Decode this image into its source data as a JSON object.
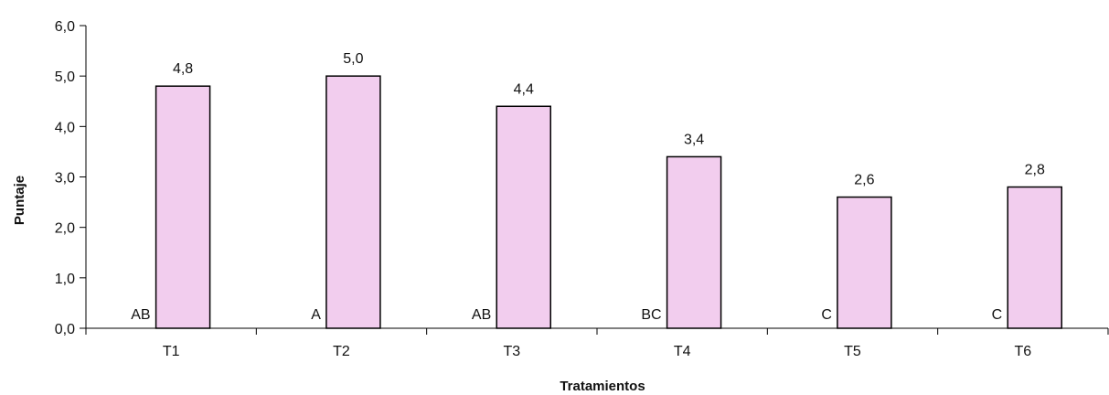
{
  "chart_data": {
    "type": "bar",
    "title": "",
    "xlabel": "Tratamientos",
    "ylabel": "Puntaje",
    "categories": [
      "T1",
      "T2",
      "T3",
      "T4",
      "T5",
      "T6"
    ],
    "values": [
      4.8,
      5.0,
      4.4,
      3.4,
      2.6,
      2.8
    ],
    "data_labels": [
      "4,8",
      "5,0",
      "4,4",
      "3,4",
      "2,6",
      "2,8"
    ],
    "group_labels": [
      "AB",
      "A",
      "AB",
      "BC",
      "C",
      "C"
    ],
    "ylim": [
      0,
      6
    ],
    "yticks": [
      0,
      1,
      2,
      3,
      4,
      5,
      6
    ],
    "ytick_labels": [
      "0,0",
      "1,0",
      "2,0",
      "3,0",
      "4,0",
      "5,0",
      "6,0"
    ],
    "grid": false,
    "legend": "none",
    "bar_color": "#f2cdee",
    "bar_edge_color": "#000000"
  }
}
